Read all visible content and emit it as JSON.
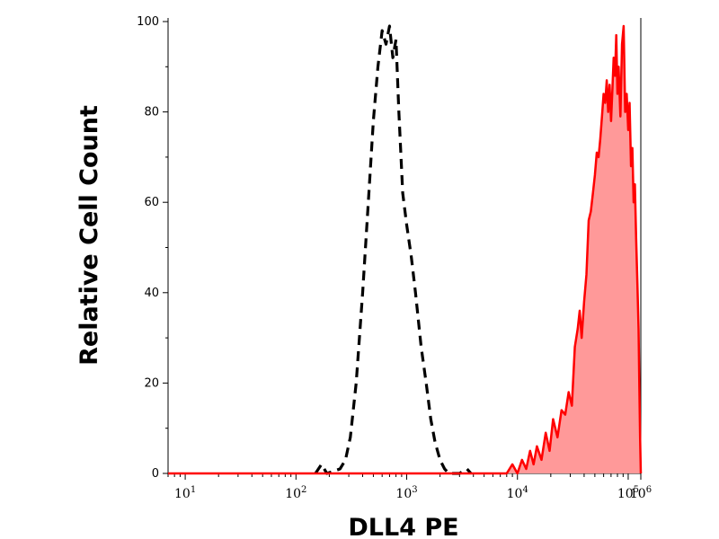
{
  "chart_data": {
    "type": "area",
    "xlabel": "DLL4 PE",
    "ylabel": "Relative Cell Count",
    "x_scale": "log",
    "xlim": [
      7,
      130000
    ],
    "ylim": [
      0,
      100
    ],
    "x_ticks": [
      {
        "base": "10",
        "exp": "1",
        "value": 10
      },
      {
        "base": "10",
        "exp": "2",
        "value": 100
      },
      {
        "base": "10",
        "exp": "3",
        "value": 1000
      },
      {
        "base": "10",
        "exp": "4",
        "value": 10000
      },
      {
        "base": "10",
        "exp": "5",
        "value": 100000
      },
      {
        "base": "10",
        "exp": "6",
        "value": 1000000
      }
    ],
    "y_ticks": [
      {
        "label": "0",
        "value": 0
      },
      {
        "label": "20",
        "value": 20
      },
      {
        "label": "40",
        "value": 40
      },
      {
        "label": "60",
        "value": 60
      },
      {
        "label": "80",
        "value": 80
      },
      {
        "label": "100",
        "value": 100
      }
    ],
    "series": [
      {
        "style": "dashed",
        "color": "#000000",
        "fill": "none",
        "points": [
          [
            150,
            0
          ],
          [
            170,
            2
          ],
          [
            190,
            0
          ],
          [
            250,
            1
          ],
          [
            280,
            3
          ],
          [
            310,
            8
          ],
          [
            350,
            20
          ],
          [
            400,
            40
          ],
          [
            450,
            60
          ],
          [
            500,
            78
          ],
          [
            550,
            90
          ],
          [
            600,
            98
          ],
          [
            650,
            95
          ],
          [
            700,
            99
          ],
          [
            750,
            92
          ],
          [
            800,
            96
          ],
          [
            850,
            80
          ],
          [
            920,
            62
          ],
          [
            1000,
            55
          ],
          [
            1100,
            48
          ],
          [
            1200,
            40
          ],
          [
            1350,
            28
          ],
          [
            1500,
            20
          ],
          [
            1650,
            12
          ],
          [
            1800,
            7
          ],
          [
            2000,
            3
          ],
          [
            2200,
            1
          ],
          [
            2400,
            0
          ],
          [
            3000,
            0
          ],
          [
            3500,
            1
          ],
          [
            3800,
            0
          ]
        ]
      },
      {
        "style": "solid",
        "color": "#ff0000",
        "fill": "#ff9999",
        "points": [
          [
            7,
            0
          ],
          [
            8000,
            0
          ],
          [
            9000,
            2
          ],
          [
            10000,
            0
          ],
          [
            11000,
            3
          ],
          [
            12000,
            1
          ],
          [
            13000,
            5
          ],
          [
            14000,
            2
          ],
          [
            15000,
            6
          ],
          [
            16500,
            3
          ],
          [
            18000,
            9
          ],
          [
            19500,
            5
          ],
          [
            21000,
            12
          ],
          [
            23000,
            8
          ],
          [
            25000,
            14
          ],
          [
            27000,
            13
          ],
          [
            29000,
            18
          ],
          [
            31000,
            15
          ],
          [
            33000,
            28
          ],
          [
            35000,
            32
          ],
          [
            36500,
            36
          ],
          [
            38000,
            30
          ],
          [
            40000,
            38
          ],
          [
            42000,
            44
          ],
          [
            44000,
            56
          ],
          [
            46000,
            58
          ],
          [
            48000,
            62
          ],
          [
            50000,
            66
          ],
          [
            52000,
            71
          ],
          [
            54000,
            70
          ],
          [
            56000,
            74
          ],
          [
            58000,
            79
          ],
          [
            60000,
            84
          ],
          [
            62000,
            82
          ],
          [
            64000,
            87
          ],
          [
            66000,
            80
          ],
          [
            68000,
            86
          ],
          [
            70000,
            78
          ],
          [
            72000,
            85
          ],
          [
            74000,
            92
          ],
          [
            76000,
            88
          ],
          [
            78000,
            97
          ],
          [
            80000,
            84
          ],
          [
            82000,
            90
          ],
          [
            85000,
            79
          ],
          [
            88000,
            95
          ],
          [
            91000,
            99
          ],
          [
            94000,
            80
          ],
          [
            97000,
            84
          ],
          [
            100000,
            76
          ],
          [
            103000,
            82
          ],
          [
            106000,
            68
          ],
          [
            109000,
            72
          ],
          [
            112000,
            60
          ],
          [
            115000,
            64
          ],
          [
            118000,
            52
          ],
          [
            121000,
            42
          ],
          [
            124000,
            32
          ],
          [
            126000,
            20
          ],
          [
            128000,
            8
          ],
          [
            130000,
            0
          ]
        ]
      }
    ]
  }
}
